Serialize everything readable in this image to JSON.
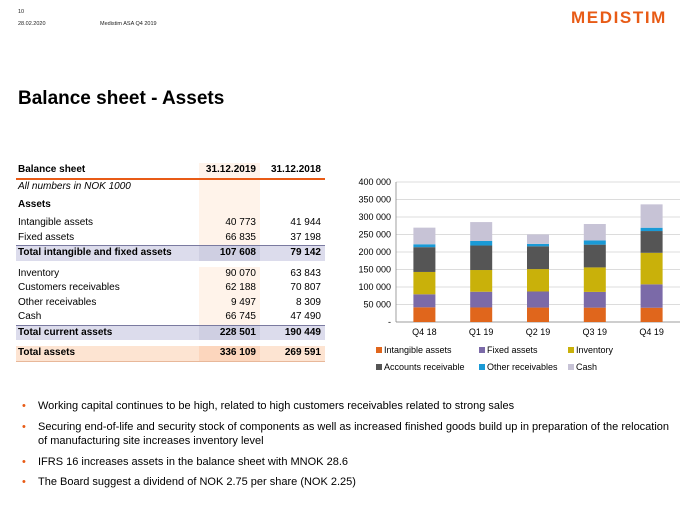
{
  "header": {
    "page_number": "10",
    "date": "28.02.2020",
    "doc_title": "Medistim ASA Q4 2019",
    "logo_text": "MEDISTIM",
    "accent_color": "#e85b16"
  },
  "title": "Balance sheet - Assets",
  "table": {
    "header": {
      "label": "Balance sheet",
      "col1": "31.12.2019",
      "col2": "31.12.2018"
    },
    "subtitle": "All numbers in NOK 1000",
    "section_assets": "Assets",
    "rows": [
      {
        "label": "Intangible assets",
        "v2019": "40 773",
        "v2018": "41 944"
      },
      {
        "label": "Fixed assets",
        "v2019": "66 835",
        "v2018": "37 198"
      },
      {
        "label": "Total intangible and fixed assets",
        "v2019": "107 608",
        "v2018": "79 142"
      },
      {
        "label": "Inventory",
        "v2019": "90 070",
        "v2018": "63 843"
      },
      {
        "label": "Customers receivables",
        "v2019": "62 188",
        "v2018": "70 807"
      },
      {
        "label": "Other receivables",
        "v2019": "9 497",
        "v2018": "8 309"
      },
      {
        "label": "Cash",
        "v2019": "66 745",
        "v2018": "47 490"
      },
      {
        "label": "Total current assets",
        "v2019": "228 501",
        "v2018": "190 449"
      },
      {
        "label": "Total assets",
        "v2019": "336 109",
        "v2018": "269 591"
      }
    ]
  },
  "chart_data": {
    "type": "bar",
    "stacked": true,
    "categories": [
      "Q4 18",
      "Q1 19",
      "Q2 19",
      "Q3 19",
      "Q4 19"
    ],
    "ylim": [
      0,
      400000
    ],
    "yticks": [
      "-",
      "50 000",
      "100 000",
      "150 000",
      "200 000",
      "250 000",
      "300 000",
      "350 000",
      "400 000"
    ],
    "grid": true,
    "legend_position": "bottom",
    "series": [
      {
        "name": "Intangible assets",
        "color": "#e0661c",
        "values": [
          41944,
          41500,
          41200,
          41000,
          40773
        ]
      },
      {
        "name": "Fixed assets",
        "color": "#7b6aa8",
        "values": [
          37198,
          45000,
          46000,
          45000,
          66835
        ]
      },
      {
        "name": "Inventory",
        "color": "#c9b10a",
        "values": [
          63843,
          62000,
          64000,
          70000,
          90070
        ]
      },
      {
        "name": "Accounts receivable",
        "color": "#555555",
        "values": [
          70807,
          70000,
          65000,
          65000,
          62188
        ]
      },
      {
        "name": "Other receivables",
        "color": "#1a9ad6",
        "values": [
          8309,
          13000,
          7000,
          12000,
          9497
        ]
      },
      {
        "name": "Cash",
        "color": "#c7c3d6",
        "values": [
          47490,
          54000,
          27000,
          47000,
          66745
        ]
      }
    ]
  },
  "bullets": [
    "Working capital continues to be high, related to high customers receivables related to strong sales",
    "Securing end-of-life and security stock of components as well as increased finished goods build up in preparation of the relocation of manufacturing site increases inventory level",
    "IFRS 16 increases assets in the balance sheet with MNOK 28.6",
    "The Board suggest a dividend of NOK 2.75 per share (NOK 2.25)"
  ],
  "bullet_glyph": "•"
}
